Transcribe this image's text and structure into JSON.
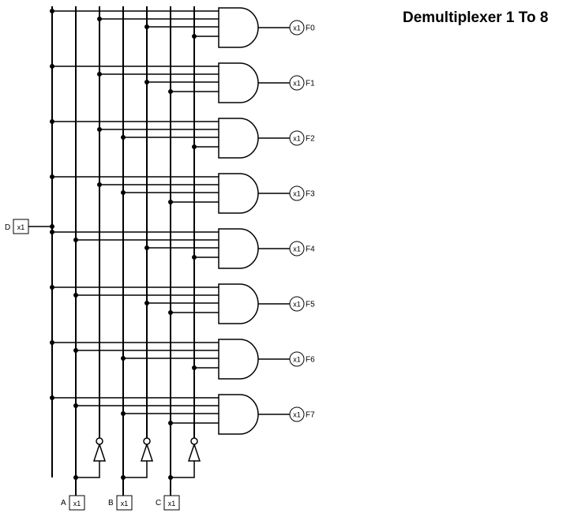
{
  "title": "Demultiplexer 1 To 8",
  "io_tag": "x1",
  "inputs": {
    "data": {
      "name": "D"
    },
    "selects": [
      {
        "name": "A"
      },
      {
        "name": "B"
      },
      {
        "name": "C"
      }
    ]
  },
  "outputs": [
    {
      "name": "F0",
      "select_levels": [
        0,
        0,
        0
      ]
    },
    {
      "name": "F1",
      "select_levels": [
        0,
        0,
        1
      ]
    },
    {
      "name": "F2",
      "select_levels": [
        0,
        1,
        0
      ]
    },
    {
      "name": "F3",
      "select_levels": [
        0,
        1,
        1
      ]
    },
    {
      "name": "F4",
      "select_levels": [
        1,
        0,
        0
      ]
    },
    {
      "name": "F5",
      "select_levels": [
        1,
        0,
        1
      ]
    },
    {
      "name": "F6",
      "select_levels": [
        1,
        1,
        0
      ]
    },
    {
      "name": "F7",
      "select_levels": [
        1,
        1,
        1
      ]
    }
  ],
  "colors": {
    "wire": "#000000",
    "background": "#ffffff"
  }
}
